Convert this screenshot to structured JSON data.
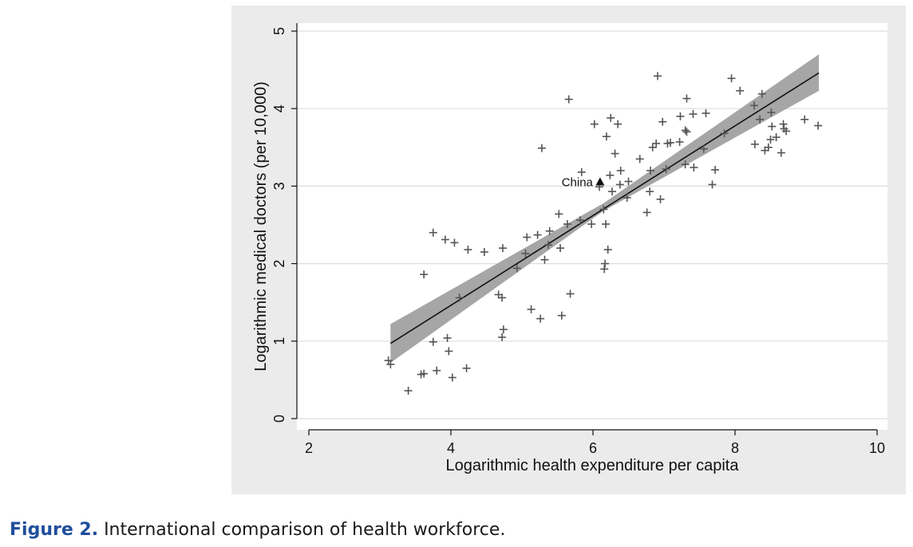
{
  "chart_data": {
    "type": "scatter",
    "xlabel": "Logarithmic health expenditure per capita",
    "ylabel": "Logarithmic medical doctors (per 10,000)",
    "xlim": [
      2,
      10
    ],
    "ylim": [
      0,
      5
    ],
    "xticks": [
      "2",
      "4",
      "6",
      "8",
      "10"
    ],
    "yticks": [
      "0",
      "1",
      "2",
      "3",
      "4",
      "5"
    ],
    "grid": true,
    "marker": "+",
    "series": [
      {
        "name": "countries",
        "points": [
          [
            3.12,
            0.75
          ],
          [
            3.15,
            0.7
          ],
          [
            3.4,
            0.36
          ],
          [
            3.58,
            0.57
          ],
          [
            3.62,
            0.58
          ],
          [
            3.62,
            1.86
          ],
          [
            3.75,
            0.99
          ],
          [
            3.75,
            2.4
          ],
          [
            3.8,
            0.62
          ],
          [
            3.95,
            1.04
          ],
          [
            3.97,
            0.87
          ],
          [
            3.92,
            2.31
          ],
          [
            4.02,
            0.53
          ],
          [
            4.05,
            2.27
          ],
          [
            4.12,
            1.56
          ],
          [
            4.22,
            0.65
          ],
          [
            4.24,
            2.18
          ],
          [
            4.47,
            2.15
          ],
          [
            4.67,
            1.6
          ],
          [
            4.72,
            1.56
          ],
          [
            4.72,
            1.05
          ],
          [
            4.74,
            1.15
          ],
          [
            4.73,
            2.2
          ],
          [
            4.93,
            1.94
          ],
          [
            5.05,
            2.13
          ],
          [
            5.07,
            2.34
          ],
          [
            5.13,
            1.41
          ],
          [
            5.22,
            2.37
          ],
          [
            5.26,
            1.29
          ],
          [
            5.28,
            3.49
          ],
          [
            5.32,
            2.05
          ],
          [
            5.37,
            2.24
          ],
          [
            5.39,
            2.42
          ],
          [
            5.52,
            2.64
          ],
          [
            5.54,
            2.2
          ],
          [
            5.56,
            1.33
          ],
          [
            5.64,
            2.51
          ],
          [
            5.66,
            4.12
          ],
          [
            5.68,
            1.61
          ],
          [
            5.82,
            2.56
          ],
          [
            5.84,
            3.18
          ],
          [
            5.98,
            2.51
          ],
          [
            6.02,
            3.8
          ],
          [
            6.09,
            2.99
          ],
          [
            6.15,
            2.7
          ],
          [
            6.16,
            1.93
          ],
          [
            6.18,
            2.51
          ],
          [
            6.17,
            2.0
          ],
          [
            6.19,
            3.64
          ],
          [
            6.21,
            2.18
          ],
          [
            6.24,
            3.14
          ],
          [
            6.25,
            3.88
          ],
          [
            6.27,
            2.93
          ],
          [
            6.31,
            3.42
          ],
          [
            6.35,
            3.8
          ],
          [
            6.39,
            3.2
          ],
          [
            6.38,
            3.02
          ],
          [
            6.48,
            2.85
          ],
          [
            6.5,
            3.06
          ],
          [
            6.66,
            3.35
          ],
          [
            6.76,
            2.66
          ],
          [
            6.8,
            2.93
          ],
          [
            6.81,
            3.2
          ],
          [
            6.84,
            3.5
          ],
          [
            6.89,
            3.55
          ],
          [
            6.91,
            4.42
          ],
          [
            6.95,
            2.83
          ],
          [
            6.98,
            3.83
          ],
          [
            7.03,
            3.22
          ],
          [
            7.05,
            3.55
          ],
          [
            7.09,
            3.56
          ],
          [
            7.22,
            3.57
          ],
          [
            7.23,
            3.9
          ],
          [
            7.3,
            3.28
          ],
          [
            7.3,
            3.72
          ],
          [
            7.32,
            3.7
          ],
          [
            7.32,
            4.13
          ],
          [
            7.41,
            3.93
          ],
          [
            7.42,
            3.24
          ],
          [
            7.56,
            3.48
          ],
          [
            7.59,
            3.94
          ],
          [
            7.68,
            3.02
          ],
          [
            7.72,
            3.21
          ],
          [
            7.85,
            3.68
          ],
          [
            7.95,
            4.39
          ],
          [
            8.07,
            4.23
          ],
          [
            8.27,
            4.04
          ],
          [
            8.28,
            3.54
          ],
          [
            8.35,
            3.86
          ],
          [
            8.38,
            4.19
          ],
          [
            8.42,
            3.46
          ],
          [
            8.47,
            3.5
          ],
          [
            8.5,
            3.6
          ],
          [
            8.51,
            3.95
          ],
          [
            8.52,
            3.77
          ],
          [
            8.58,
            3.63
          ],
          [
            8.65,
            3.43
          ],
          [
            8.68,
            3.8
          ],
          [
            8.69,
            3.74
          ],
          [
            8.72,
            3.71
          ],
          [
            8.98,
            3.86
          ],
          [
            9.17,
            3.78
          ]
        ]
      }
    ],
    "fit_line": {
      "x": [
        3.15,
        9.18
      ],
      "y": [
        0.97,
        4.46
      ]
    },
    "confidence_band": {
      "x": [
        3.15,
        6.15,
        9.18
      ],
      "lower": [
        0.72,
        2.68,
        4.23
      ],
      "upper": [
        1.22,
        2.78,
        4.7
      ]
    },
    "annotations": [
      {
        "label": "China",
        "x": 6.1,
        "y": 3.05,
        "marker": "triangle"
      }
    ]
  },
  "caption": {
    "label": "Figure 2.",
    "text": " International comparison of health workforce."
  },
  "colors": {
    "panel_bg": "#ebebeb",
    "plot_bg": "#ffffff",
    "grid": "#dddddd",
    "band": "#a6a6a6",
    "fit_line": "#111111",
    "marker": "#555555",
    "caption_label": "#1f4e9c"
  }
}
